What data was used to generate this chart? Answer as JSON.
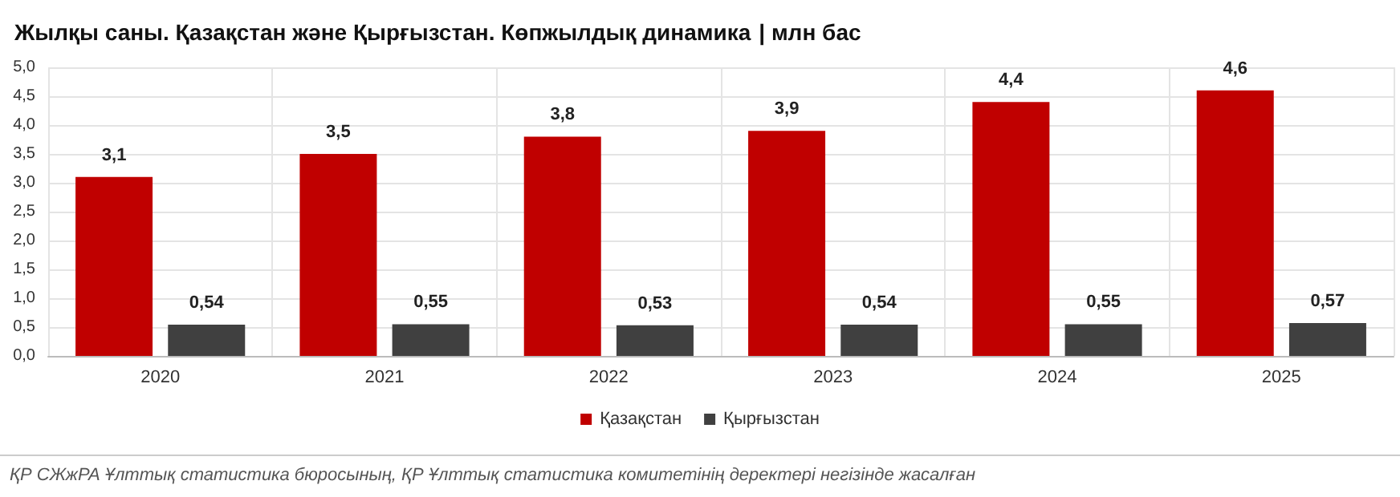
{
  "chart_data": {
    "type": "bar",
    "title": "Жылқы саны. Қазақстан және Қырғызстан. Көпжылдық динамика",
    "subtitle": "| млн бас",
    "categories": [
      "2020",
      "2021",
      "2022",
      "2023",
      "2024",
      "2025"
    ],
    "series": [
      {
        "name": "Қазақстан",
        "color": "#c00000",
        "values": [
          3.1,
          3.5,
          3.8,
          3.9,
          4.4,
          4.6
        ],
        "value_labels": [
          "3,1",
          "3,5",
          "3,8",
          "3,9",
          "4,4",
          "4,6"
        ]
      },
      {
        "name": "Қырғызстан",
        "color": "#404040",
        "values": [
          0.54,
          0.55,
          0.53,
          0.54,
          0.55,
          0.57
        ],
        "value_labels": [
          "0,54",
          "0,55",
          "0,53",
          "0,54",
          "0,55",
          "0,57"
        ]
      }
    ],
    "ylim": [
      0,
      5
    ],
    "yticks": [
      {
        "value": 0,
        "label": "0,0"
      },
      {
        "value": 0.5,
        "label": "0,5"
      },
      {
        "value": 1,
        "label": "1,0"
      },
      {
        "value": 1.5,
        "label": "1,5"
      },
      {
        "value": 2,
        "label": "2,0"
      },
      {
        "value": 2.5,
        "label": "2,5"
      },
      {
        "value": 3,
        "label": "3,0"
      },
      {
        "value": 3.5,
        "label": "3,5"
      },
      {
        "value": 4,
        "label": "4,0"
      },
      {
        "value": 4.5,
        "label": "4,5"
      },
      {
        "value": 5,
        "label": "5,0"
      }
    ],
    "grid": true,
    "legend": "bottom",
    "annotations": [
      "ҚР СЖжРА Ұлттық статистика бюросының, ҚР Ұлттық статистика комитетінің деректері негізінде жасалған"
    ]
  }
}
